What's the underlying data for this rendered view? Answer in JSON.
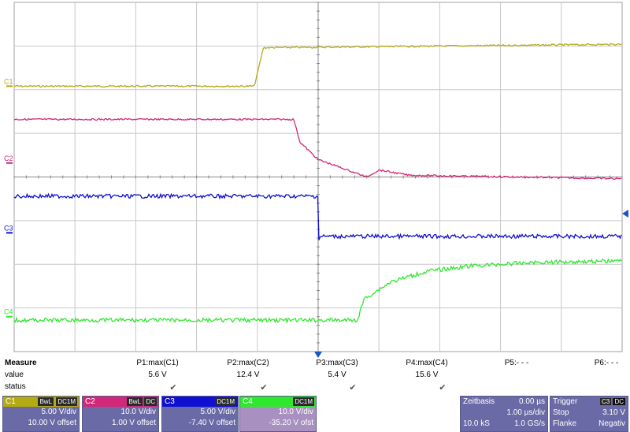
{
  "screen": {
    "grid_divisions": {
      "x": 10,
      "y": 8
    },
    "channels": [
      {
        "id": "C1",
        "label": "C1",
        "color": "#b4aa14",
        "marker_level": 0.24,
        "steps": [
          [
            0,
            0.24
          ],
          [
            0.395,
            0.24
          ],
          [
            0.41,
            0.13
          ],
          [
            1,
            0.12
          ]
        ]
      },
      {
        "id": "C2",
        "label": "C2",
        "color": "#d2287a",
        "marker_level": 0.46,
        "steps": [
          [
            0,
            0.335
          ],
          [
            0.46,
            0.335
          ],
          [
            0.47,
            0.4
          ],
          [
            0.5,
            0.45
          ],
          [
            0.58,
            0.5
          ],
          [
            0.6,
            0.48
          ],
          [
            0.65,
            0.495
          ],
          [
            1,
            0.505
          ]
        ]
      },
      {
        "id": "C3",
        "label": "C3",
        "color": "#1010d0",
        "marker_level": 0.66,
        "steps": [
          [
            0,
            0.555
          ],
          [
            0.5,
            0.555
          ],
          [
            0.5,
            0.68
          ],
          [
            0.505,
            0.67
          ],
          [
            1,
            0.67
          ]
        ]
      },
      {
        "id": "C4",
        "label": "C4",
        "color": "#2ee82e",
        "marker_level": 0.9,
        "steps": [
          [
            0,
            0.91
          ],
          [
            0.565,
            0.91
          ],
          [
            0.575,
            0.85
          ],
          [
            0.62,
            0.8
          ],
          [
            0.68,
            0.77
          ],
          [
            0.75,
            0.755
          ],
          [
            0.85,
            0.745
          ],
          [
            1,
            0.74
          ]
        ]
      }
    ],
    "trigger_color": "#1a55c8"
  },
  "measure": {
    "title": "Measure",
    "row_value": "value",
    "row_status": "status",
    "columns": [
      {
        "name": "P1:max(C1)",
        "value": "5.6 V",
        "status": true
      },
      {
        "name": "P2:max(C2)",
        "value": "12.4 V",
        "status": true
      },
      {
        "name": "P3:max(C3)",
        "value": "5.4 V",
        "status": true
      },
      {
        "name": "P4:max(C4)",
        "value": "15.6 V",
        "status": true
      },
      {
        "name": "P5:- - -",
        "value": "",
        "status": false
      },
      {
        "name": "P6:- - -",
        "value": "",
        "status": false
      }
    ]
  },
  "channel_boxes": [
    {
      "label": "C1",
      "color": "#b4aa14",
      "tags": [
        "BwL",
        "DC1M"
      ],
      "scale": "5.00 V/div",
      "offset": "10.00 V offset"
    },
    {
      "label": "C2",
      "color": "#d2287a",
      "tags": [
        "BwL",
        "DC"
      ],
      "scale": "10.0 V/div",
      "offset": "1.00 V offset"
    },
    {
      "label": "C3",
      "color": "#1010d0",
      "tags": [
        "DC1M"
      ],
      "scale": "5.00 V/div",
      "offset": "-7.40 V offset"
    },
    {
      "label": "C4",
      "color": "#2ee82e",
      "tags": [
        "DC1M"
      ],
      "scale": "10.0 V/div",
      "offset": "-35.20 V ofst"
    }
  ],
  "timebase": {
    "title": "Zeitbasis",
    "delay": "0.00 µs",
    "per_div": "1.00 µs/div",
    "samples": "10.0 kS",
    "rate": "1.0 GS/s"
  },
  "trigger": {
    "title": "Trigger",
    "channel": "C3",
    "coupling": "DC",
    "mode": "Stop",
    "level": "3.10 V",
    "edge_label": "Flanke",
    "edge": "Negativ"
  }
}
